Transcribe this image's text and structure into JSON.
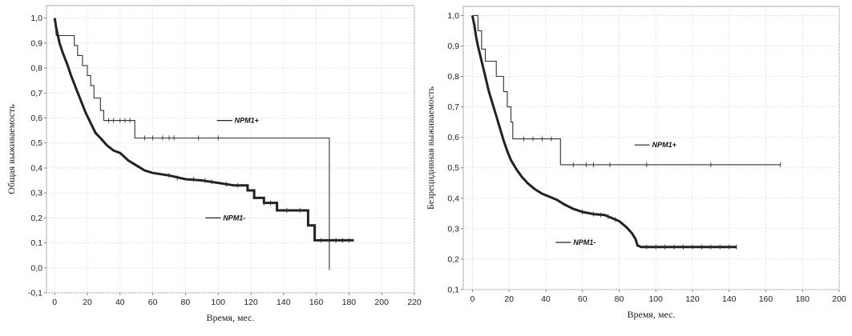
{
  "chart_data": [
    {
      "type": "line",
      "title": "",
      "xlabel": "Время, мес.",
      "ylabel": "Общая выживаемость",
      "xlim": [
        -5,
        220
      ],
      "ylim": [
        -0.1,
        1.05
      ],
      "x_ticks": [
        0,
        20,
        40,
        60,
        80,
        100,
        120,
        140,
        160,
        180,
        200,
        220
      ],
      "y_ticks": [
        -0.1,
        0.0,
        0.1,
        0.2,
        0.3,
        0.4,
        0.5,
        0.6,
        0.7,
        0.8,
        0.9,
        1.0
      ],
      "y_tick_labels": [
        "-0,1",
        "0,0",
        "0,1",
        "0,2",
        "0,3",
        "0,4",
        "0,5",
        "0,6",
        "0,7",
        "0,8",
        "0,9",
        "1,0"
      ],
      "grid": true,
      "series": [
        {
          "name": "NPM1+",
          "style": "step-thin",
          "label_x": 110,
          "label_y": 0.59,
          "points": [
            [
              0,
              1.0
            ],
            [
              1,
              0.93
            ],
            [
              12,
              0.93
            ],
            [
              12,
              0.89
            ],
            [
              14,
              0.89
            ],
            [
              14,
              0.85
            ],
            [
              17,
              0.85
            ],
            [
              17,
              0.81
            ],
            [
              20,
              0.81
            ],
            [
              20,
              0.77
            ],
            [
              22,
              0.77
            ],
            [
              22,
              0.73
            ],
            [
              24,
              0.73
            ],
            [
              24,
              0.68
            ],
            [
              28,
              0.68
            ],
            [
              28,
              0.63
            ],
            [
              30,
              0.63
            ],
            [
              30,
              0.59
            ],
            [
              49,
              0.59
            ],
            [
              49,
              0.52
            ],
            [
              168,
              0.52
            ],
            [
              168,
              0.0
            ]
          ],
          "censors": [
            [
              33,
              0.59
            ],
            [
              36,
              0.59
            ],
            [
              40,
              0.59
            ],
            [
              43,
              0.59
            ],
            [
              46,
              0.59
            ],
            [
              55,
              0.52
            ],
            [
              60,
              0.52
            ],
            [
              66,
              0.52
            ],
            [
              70,
              0.52
            ],
            [
              73,
              0.52
            ],
            [
              88,
              0.52
            ],
            [
              100,
              0.52
            ],
            [
              168,
              0.0
            ]
          ]
        },
        {
          "name": "NPM1-",
          "style": "step-thick",
          "label_x": 103,
          "label_y": 0.2,
          "points": [
            [
              0,
              1.0
            ],
            [
              1,
              0.96
            ],
            [
              2,
              0.93
            ],
            [
              3,
              0.9
            ],
            [
              5,
              0.86
            ],
            [
              8,
              0.81
            ],
            [
              10,
              0.77
            ],
            [
              13,
              0.72
            ],
            [
              16,
              0.67
            ],
            [
              19,
              0.62
            ],
            [
              22,
              0.58
            ],
            [
              25,
              0.54
            ],
            [
              28,
              0.52
            ],
            [
              32,
              0.49
            ],
            [
              36,
              0.47
            ],
            [
              40,
              0.46
            ],
            [
              45,
              0.43
            ],
            [
              50,
              0.41
            ],
            [
              55,
              0.39
            ],
            [
              60,
              0.38
            ],
            [
              70,
              0.37
            ],
            [
              80,
              0.355
            ],
            [
              90,
              0.35
            ],
            [
              100,
              0.34
            ],
            [
              110,
              0.33
            ],
            [
              118,
              0.33
            ],
            [
              118,
              0.31
            ],
            [
              122,
              0.31
            ],
            [
              122,
              0.28
            ],
            [
              128,
              0.28
            ],
            [
              128,
              0.26
            ],
            [
              136,
              0.26
            ],
            [
              136,
              0.23
            ],
            [
              155,
              0.23
            ],
            [
              155,
              0.17
            ],
            [
              159,
              0.17
            ],
            [
              159,
              0.11
            ],
            [
              183,
              0.11
            ]
          ],
          "censors": [
            [
              70,
              0.37
            ],
            [
              75,
              0.36
            ],
            [
              85,
              0.355
            ],
            [
              92,
              0.35
            ],
            [
              96,
              0.345
            ],
            [
              105,
              0.335
            ],
            [
              112,
              0.33
            ],
            [
              128,
              0.26
            ],
            [
              132,
              0.26
            ],
            [
              142,
              0.23
            ],
            [
              150,
              0.23
            ],
            [
              163,
              0.11
            ],
            [
              168,
              0.11
            ],
            [
              172,
              0.11
            ],
            [
              176,
              0.11
            ],
            [
              180,
              0.11
            ]
          ]
        }
      ]
    },
    {
      "type": "line",
      "title": "",
      "xlabel": "Время, мес.",
      "ylabel": "Безрецидивная выживаемость",
      "xlim": [
        -5,
        200
      ],
      "ylim": [
        0.1,
        1.03
      ],
      "x_ticks": [
        0,
        20,
        40,
        60,
        80,
        100,
        120,
        140,
        160,
        180,
        200
      ],
      "y_ticks": [
        0.1,
        0.2,
        0.3,
        0.4,
        0.5,
        0.6,
        0.7,
        0.8,
        0.9,
        1.0
      ],
      "y_tick_labels": [
        "0,1",
        "0,2",
        "0,3",
        "0,4",
        "0,5",
        "0,6",
        "0,7",
        "0,8",
        "0,9",
        "1,0"
      ],
      "grid": true,
      "series": [
        {
          "name": "NPM1+",
          "style": "step-thin",
          "label_x": 98,
          "label_y": 0.575,
          "points": [
            [
              0,
              1.0
            ],
            [
              3,
              1.0
            ],
            [
              3,
              0.95
            ],
            [
              5,
              0.95
            ],
            [
              5,
              0.89
            ],
            [
              7,
              0.89
            ],
            [
              7,
              0.85
            ],
            [
              13,
              0.85
            ],
            [
              13,
              0.8
            ],
            [
              17,
              0.8
            ],
            [
              17,
              0.75
            ],
            [
              19,
              0.75
            ],
            [
              19,
              0.7
            ],
            [
              21,
              0.7
            ],
            [
              21,
              0.65
            ],
            [
              22,
              0.65
            ],
            [
              22,
              0.595
            ],
            [
              48,
              0.595
            ],
            [
              48,
              0.51
            ],
            [
              168,
              0.51
            ]
          ],
          "censors": [
            [
              28,
              0.595
            ],
            [
              33,
              0.595
            ],
            [
              38,
              0.595
            ],
            [
              43,
              0.595
            ],
            [
              55,
              0.51
            ],
            [
              62,
              0.51
            ],
            [
              66,
              0.51
            ],
            [
              75,
              0.51
            ],
            [
              95,
              0.51
            ],
            [
              130,
              0.51
            ],
            [
              168,
              0.51
            ]
          ]
        },
        {
          "name": "NPM1-",
          "style": "step-thick",
          "label_x": 55,
          "label_y": 0.255,
          "points": [
            [
              0,
              1.0
            ],
            [
              1,
              0.97
            ],
            [
              2,
              0.93
            ],
            [
              3,
              0.9
            ],
            [
              5,
              0.85
            ],
            [
              7,
              0.8
            ],
            [
              9,
              0.75
            ],
            [
              11,
              0.71
            ],
            [
              13,
              0.67
            ],
            [
              15,
              0.63
            ],
            [
              17,
              0.59
            ],
            [
              19,
              0.555
            ],
            [
              21,
              0.525
            ],
            [
              24,
              0.495
            ],
            [
              27,
              0.47
            ],
            [
              30,
              0.45
            ],
            [
              34,
              0.43
            ],
            [
              38,
              0.415
            ],
            [
              42,
              0.405
            ],
            [
              46,
              0.395
            ],
            [
              50,
              0.38
            ],
            [
              55,
              0.365
            ],
            [
              60,
              0.355
            ],
            [
              66,
              0.348
            ],
            [
              72,
              0.345
            ],
            [
              76,
              0.335
            ],
            [
              80,
              0.325
            ],
            [
              84,
              0.305
            ],
            [
              87,
              0.285
            ],
            [
              89,
              0.265
            ],
            [
              90,
              0.245
            ],
            [
              92,
              0.24
            ],
            [
              144,
              0.24
            ]
          ],
          "censors": [
            [
              60,
              0.355
            ],
            [
              66,
              0.348
            ],
            [
              70,
              0.345
            ],
            [
              74,
              0.34
            ],
            [
              78,
              0.33
            ],
            [
              95,
              0.24
            ],
            [
              100,
              0.24
            ],
            [
              105,
              0.24
            ],
            [
              110,
              0.24
            ],
            [
              115,
              0.24
            ],
            [
              120,
              0.24
            ],
            [
              125,
              0.24
            ],
            [
              130,
              0.24
            ],
            [
              135,
              0.24
            ],
            [
              140,
              0.24
            ],
            [
              144,
              0.24
            ]
          ]
        }
      ]
    }
  ]
}
